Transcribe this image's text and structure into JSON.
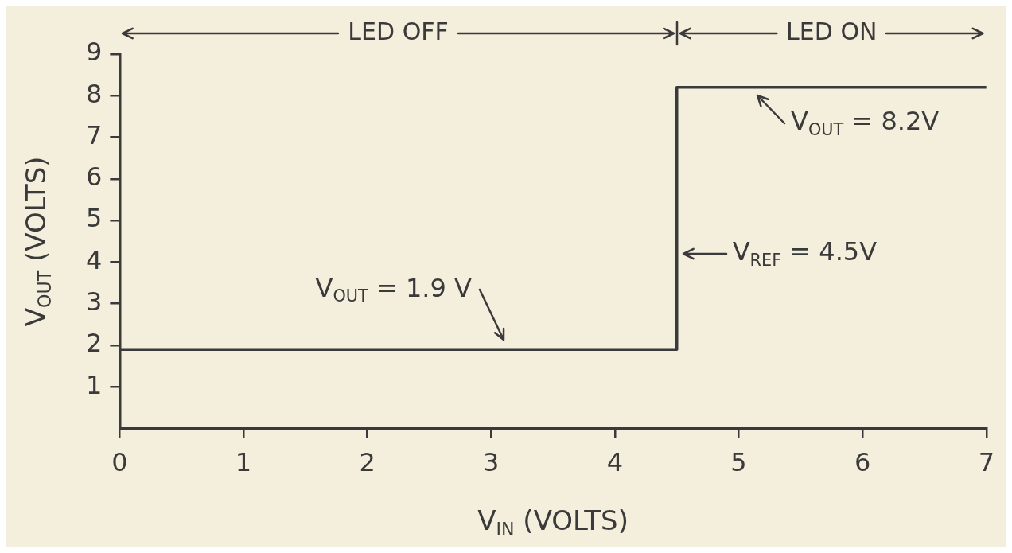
{
  "chart_data": {
    "type": "line",
    "xlabel": "V$_{IN}$ (VOLTS)",
    "ylabel": "V$_{OUT}$ (VOLTS)",
    "x": [
      0,
      4.5,
      4.5,
      7
    ],
    "series": [
      {
        "color": "#3a3a3a",
        "values": [
          1.9,
          1.9,
          8.2,
          8.2
        ]
      }
    ],
    "xlim": [
      0,
      7
    ],
    "xticks": [
      0,
      1,
      2,
      3,
      4,
      5,
      6,
      7
    ],
    "ylim": [
      0,
      9
    ],
    "yticks": [
      1,
      2,
      3,
      4,
      5,
      6,
      7,
      8,
      9
    ],
    "grid": false,
    "legend": false,
    "marker": "none",
    "line_style": "solid",
    "annotations": [
      "LED OFF",
      "LED ON",
      {
        "text": "V$_{OUT}$ = 8.2V",
        "x": 5.1,
        "y": 8.2
      },
      {
        "text": "V$_{REF}$ = 4.5V",
        "x": 4.5,
        "y": 4.2
      },
      {
        "text": "V$_{OUT}$ = 1.9 V",
        "x": 3.1,
        "y": 1.9
      }
    ]
  }
}
